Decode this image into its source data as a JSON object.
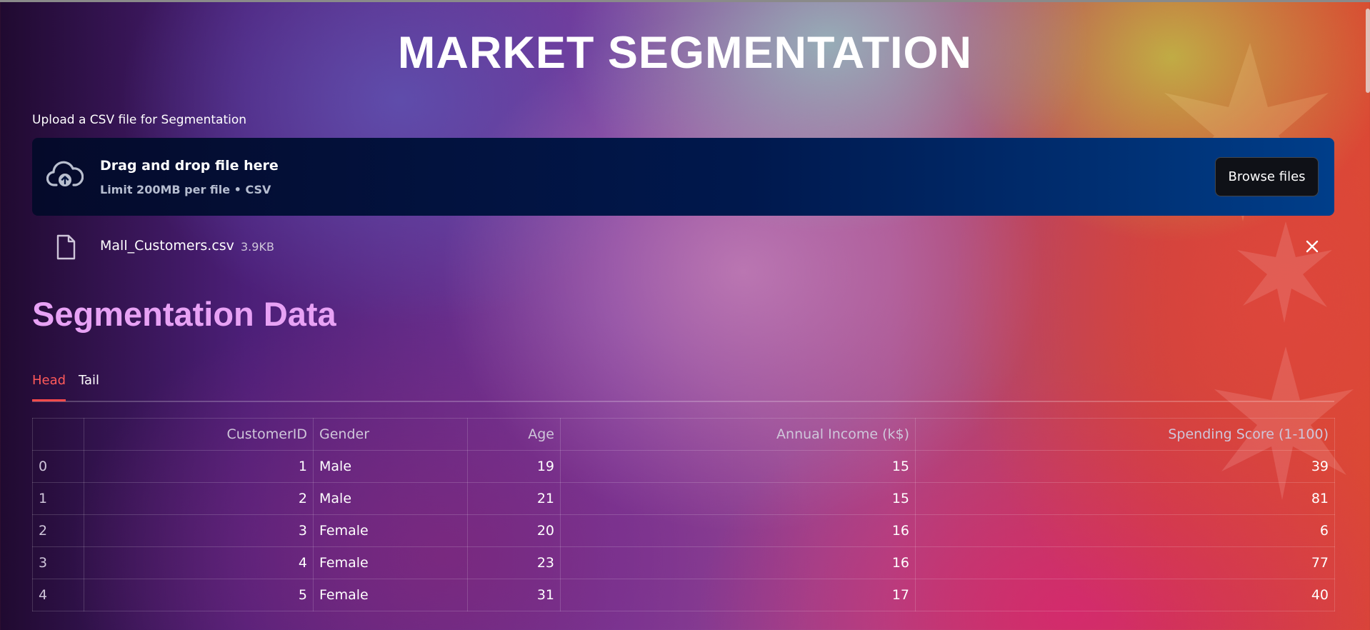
{
  "header": {
    "title": "MARKET SEGMENTATION"
  },
  "uploader": {
    "label": "Upload a CSV file for Segmentation",
    "drop_title": "Drag and drop file here",
    "drop_subtitle": "Limit 200MB per file • CSV",
    "browse_label": "Browse files"
  },
  "uploaded_file": {
    "name": "Mall_Customers.csv",
    "size": "3.9KB"
  },
  "section": {
    "title": "Segmentation Data"
  },
  "tabs": [
    {
      "label": "Head",
      "active": true
    },
    {
      "label": "Tail",
      "active": false
    }
  ],
  "table": {
    "columns": [
      "",
      "CustomerID",
      "Gender",
      "Age",
      "Annual Income (k$)",
      "Spending Score (1-100)"
    ],
    "rows": [
      [
        "0",
        "1",
        "Male",
        "19",
        "15",
        "39"
      ],
      [
        "1",
        "2",
        "Male",
        "21",
        "15",
        "81"
      ],
      [
        "2",
        "3",
        "Female",
        "20",
        "16",
        "6"
      ],
      [
        "3",
        "4",
        "Female",
        "23",
        "16",
        "77"
      ],
      [
        "4",
        "5",
        "Female",
        "31",
        "17",
        "40"
      ]
    ]
  },
  "icons": {
    "upload": "cloud-upload-icon",
    "file": "file-icon",
    "remove": "close-icon"
  },
  "colors": {
    "accent": "#ff4b4b",
    "section_heading": "#e8a2f5",
    "dropzone_start": "#050a2a",
    "dropzone_end": "#003e8a"
  }
}
